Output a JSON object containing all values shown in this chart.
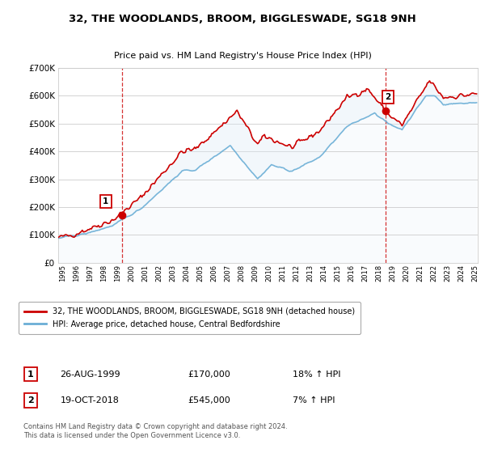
{
  "title": "32, THE WOODLANDS, BROOM, BIGGLESWADE, SG18 9NH",
  "subtitle": "Price paid vs. HM Land Registry's House Price Index (HPI)",
  "background_color": "#ffffff",
  "grid_color": "#cccccc",
  "fill_color": "#dce9f5",
  "ylim": [
    0,
    700000
  ],
  "yticks": [
    0,
    100000,
    200000,
    300000,
    400000,
    500000,
    600000,
    700000
  ],
  "ytick_labels": [
    "£0",
    "£100K",
    "£200K",
    "£300K",
    "£400K",
    "£500K",
    "£600K",
    "£700K"
  ],
  "xlim_start": 1995.0,
  "xlim_end": 2025.5,
  "xtick_years": [
    1995,
    1996,
    1997,
    1998,
    1999,
    2000,
    2001,
    2002,
    2003,
    2004,
    2005,
    2006,
    2007,
    2008,
    2009,
    2010,
    2011,
    2012,
    2013,
    2014,
    2015,
    2016,
    2017,
    2018,
    2019,
    2020,
    2021,
    2022,
    2023,
    2024,
    2025
  ],
  "hpi_color": "#6aaed6",
  "price_color": "#cc0000",
  "sale1_x": 1999.65,
  "sale1_y": 170000,
  "sale2_x": 2018.79,
  "sale2_y": 545000,
  "legend_line1": "32, THE WOODLANDS, BROOM, BIGGLESWADE, SG18 9NH (detached house)",
  "legend_line2": "HPI: Average price, detached house, Central Bedfordshire",
  "table_row1": [
    "1",
    "26-AUG-1999",
    "£170,000",
    "18% ↑ HPI"
  ],
  "table_row2": [
    "2",
    "19-OCT-2018",
    "£545,000",
    "7% ↑ HPI"
  ],
  "footer": "Contains HM Land Registry data © Crown copyright and database right 2024.\nThis data is licensed under the Open Government Licence v3.0."
}
